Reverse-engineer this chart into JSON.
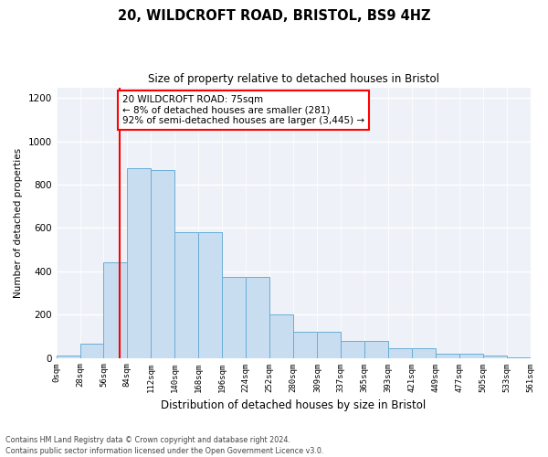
{
  "title1": "20, WILDCROFT ROAD, BRISTOL, BS9 4HZ",
  "title2": "Size of property relative to detached houses in Bristol",
  "xlabel": "Distribution of detached houses by size in Bristol",
  "ylabel": "Number of detached properties",
  "bar_color": "#c8ddf0",
  "bar_edge_color": "#6aaed6",
  "red_line_x": 75,
  "annotation_text": "20 WILDCROFT ROAD: 75sqm\n← 8% of detached houses are smaller (281)\n92% of semi-detached houses are larger (3,445) →",
  "footer1": "Contains HM Land Registry data © Crown copyright and database right 2024.",
  "footer2": "Contains public sector information licensed under the Open Government Licence v3.0.",
  "bin_edges": [
    0,
    28,
    56,
    84,
    112,
    140,
    168,
    196,
    224,
    252,
    280,
    309,
    337,
    365,
    393,
    421,
    449,
    477,
    505,
    533,
    561
  ],
  "bar_heights": [
    10,
    65,
    440,
    875,
    870,
    580,
    580,
    375,
    375,
    200,
    120,
    120,
    80,
    80,
    45,
    45,
    20,
    20,
    12,
    2
  ],
  "ylim": [
    0,
    1250
  ],
  "yticks": [
    0,
    200,
    400,
    600,
    800,
    1000,
    1200
  ],
  "background_color": "#eef2f8"
}
